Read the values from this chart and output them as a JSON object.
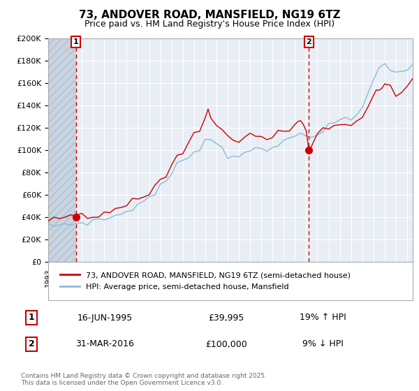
{
  "title_line1": "73, ANDOVER ROAD, MANSFIELD, NG19 6TZ",
  "title_line2": "Price paid vs. HM Land Registry's House Price Index (HPI)",
  "ylim": [
    0,
    200000
  ],
  "yticks": [
    0,
    20000,
    40000,
    60000,
    80000,
    100000,
    120000,
    140000,
    160000,
    180000,
    200000
  ],
  "ytick_labels": [
    "£0",
    "£20K",
    "£40K",
    "£60K",
    "£80K",
    "£100K",
    "£120K",
    "£140K",
    "£160K",
    "£180K",
    "£200K"
  ],
  "line1_color": "#cc0000",
  "line2_color": "#88bbdd",
  "background_color": "#ffffff",
  "plot_bg_color": "#e8eef4",
  "hatch_color": "#c8d4e0",
  "grid_color": "#ffffff",
  "annotation1_date": "16-JUN-1995",
  "annotation1_price": "£39,995",
  "annotation1_hpi": "19% ↑ HPI",
  "annotation2_date": "31-MAR-2016",
  "annotation2_price": "£100,000",
  "annotation2_hpi": "9% ↓ HPI",
  "legend_label1": "73, ANDOVER ROAD, MANSFIELD, NG19 6TZ (semi-detached house)",
  "legend_label2": "HPI: Average price, semi-detached house, Mansfield",
  "footer": "Contains HM Land Registry data © Crown copyright and database right 2025.\nThis data is licensed under the Open Government Licence v3.0.",
  "marker1_x": 1995.46,
  "marker1_y": 39995,
  "marker2_x": 2016.25,
  "marker2_y": 100000,
  "vline1_x": 1995.46,
  "vline2_x": 2016.25,
  "xmin": 1993.0,
  "xmax": 2025.5,
  "hatch_end": 1995.46,
  "hpi_years": [
    1993.0,
    1993.5,
    1994.0,
    1994.5,
    1995.0,
    1995.5,
    1996.0,
    1996.5,
    1997.0,
    1997.5,
    1998.0,
    1998.5,
    1999.0,
    1999.5,
    2000.0,
    2000.5,
    2001.0,
    2001.5,
    2002.0,
    2002.5,
    2003.0,
    2003.5,
    2004.0,
    2004.5,
    2005.0,
    2005.5,
    2006.0,
    2006.5,
    2007.0,
    2007.5,
    2008.0,
    2008.5,
    2009.0,
    2009.5,
    2010.0,
    2010.5,
    2011.0,
    2011.5,
    2012.0,
    2012.5,
    2013.0,
    2013.5,
    2014.0,
    2014.5,
    2015.0,
    2015.5,
    2016.0,
    2016.5,
    2017.0,
    2017.5,
    2018.0,
    2018.5,
    2019.0,
    2019.5,
    2020.0,
    2020.5,
    2021.0,
    2021.5,
    2022.0,
    2022.5,
    2023.0,
    2023.5,
    2024.0,
    2024.5,
    2025.0,
    2025.5
  ],
  "hpi_vals": [
    32000,
    32500,
    33000,
    33500,
    34000,
    34500,
    35000,
    35500,
    36500,
    37500,
    38500,
    39500,
    41000,
    43000,
    45500,
    48000,
    51000,
    54000,
    58000,
    62000,
    67000,
    72000,
    79000,
    86000,
    91000,
    95000,
    99000,
    103000,
    108000,
    110000,
    107000,
    101000,
    95000,
    94000,
    97000,
    99000,
    101000,
    100000,
    99000,
    99500,
    101000,
    104000,
    108000,
    112000,
    115000,
    118000,
    112000,
    108000,
    113000,
    117000,
    121000,
    124000,
    127000,
    129000,
    127000,
    132000,
    140000,
    150000,
    163000,
    172000,
    178000,
    174000,
    170000,
    168000,
    172000,
    178000
  ],
  "pp_years": [
    1993.0,
    1993.5,
    1994.0,
    1994.5,
    1995.0,
    1995.3,
    1995.46,
    1995.6,
    1996.0,
    1996.5,
    1997.0,
    1997.5,
    1998.0,
    1998.5,
    1999.0,
    1999.5,
    2000.0,
    2000.5,
    2001.0,
    2001.5,
    2002.0,
    2002.5,
    2003.0,
    2003.5,
    2004.0,
    2004.5,
    2005.0,
    2005.5,
    2006.0,
    2006.5,
    2007.0,
    2007.25,
    2007.5,
    2008.0,
    2008.5,
    2009.0,
    2009.5,
    2010.0,
    2010.5,
    2011.0,
    2011.5,
    2012.0,
    2012.5,
    2013.0,
    2013.5,
    2014.0,
    2014.5,
    2015.0,
    2015.25,
    2015.5,
    2015.75,
    2016.0,
    2016.25,
    2016.5,
    2017.0,
    2017.5,
    2018.0,
    2018.5,
    2019.0,
    2019.5,
    2020.0,
    2020.5,
    2021.0,
    2021.5,
    2022.0,
    2022.25,
    2022.5,
    2022.75,
    2023.0,
    2023.5,
    2024.0,
    2024.5,
    2025.0,
    2025.5
  ],
  "pp_vals": [
    38000,
    38500,
    38800,
    39000,
    39500,
    39800,
    39995,
    40200,
    40500,
    41000,
    41500,
    42500,
    43500,
    44500,
    46000,
    48000,
    50000,
    52500,
    55000,
    58000,
    62000,
    66000,
    72000,
    78000,
    87000,
    95000,
    100000,
    107000,
    113000,
    120000,
    128000,
    133000,
    130000,
    123000,
    118000,
    112000,
    108000,
    110000,
    113000,
    115000,
    113000,
    110000,
    110000,
    112000,
    114000,
    117000,
    119000,
    123000,
    126000,
    125000,
    122000,
    118000,
    100000,
    105000,
    112000,
    116000,
    119000,
    121000,
    122000,
    124000,
    123000,
    127000,
    133000,
    140000,
    148000,
    152000,
    154000,
    156000,
    158000,
    154000,
    150000,
    153000,
    158000,
    163000
  ]
}
